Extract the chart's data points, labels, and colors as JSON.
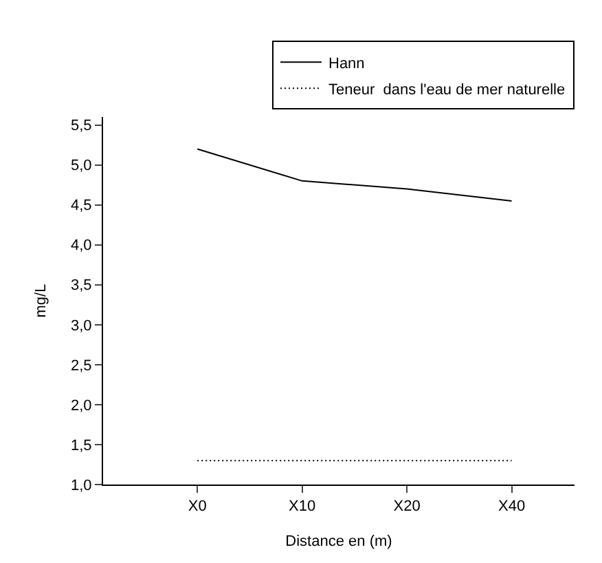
{
  "chart_data": {
    "type": "line",
    "xlabel": "Distance en (m)",
    "ylabel": "mg/L",
    "categories": [
      "X0",
      "X10",
      "X20",
      "X40"
    ],
    "series": [
      {
        "name": "Hann",
        "color": "#000000",
        "values": [
          5.2,
          4.8,
          4.7,
          4.55
        ],
        "line_style": "solid"
      },
      {
        "name": "Teneur  dans l'eau de mer naturelle",
        "color": "#000000",
        "values": [
          1.3,
          1.3,
          1.3,
          1.3
        ],
        "line_style": "dotted"
      }
    ],
    "ylim": [
      1.0,
      5.6
    ],
    "yticks": [
      {
        "value": 1.0,
        "label": "1,0"
      },
      {
        "value": 1.5,
        "label": "1,5"
      },
      {
        "value": 2.0,
        "label": "2,0"
      },
      {
        "value": 2.5,
        "label": "2,5"
      },
      {
        "value": 3.0,
        "label": "3,0"
      },
      {
        "value": 3.5,
        "label": "3,5"
      },
      {
        "value": 4.0,
        "label": "4,0"
      },
      {
        "value": 4.5,
        "label": "4,5"
      },
      {
        "value": 5.0,
        "label": "5,0"
      },
      {
        "value": 5.5,
        "label": "5,5"
      }
    ],
    "legend": "top right",
    "marker": "none"
  }
}
